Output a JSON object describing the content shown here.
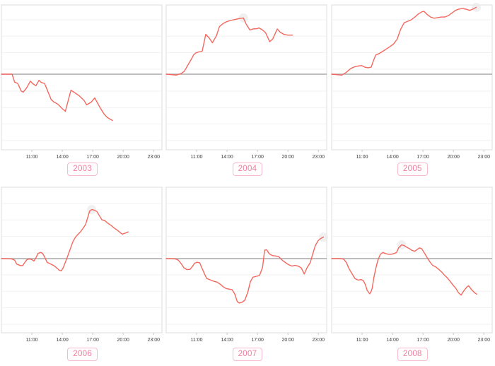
{
  "page": {
    "title": "",
    "background": "#ffffff"
  },
  "colors": {
    "line": "#f4675e",
    "zero_line": "#a8a8a8",
    "grid_line": "#f1f1f1",
    "panel_border": "#dcdcdc",
    "tick_text": "#3a3a3a",
    "tick_mark": "#c9c9c9",
    "year_text": "#ef7f9f",
    "year_border": "#f6bccb",
    "year_bg": "#fffcfd",
    "highlight_halo": "#e9e9e9"
  },
  "x_axis": {
    "tick_labels": [
      "11:00",
      "14:00",
      "17:00",
      "20:00",
      "23:00"
    ],
    "tick_hours": [
      11,
      14,
      17,
      20,
      23
    ],
    "range_hours": [
      8,
      23.75
    ]
  },
  "y_axis": {
    "range": [
      -4.85,
      4.6
    ],
    "tick_labels": []
  },
  "chart_data": [
    {
      "type": "line",
      "title": "2003",
      "xlabel": "",
      "ylabel": "",
      "grid": true,
      "zero_line": true,
      "legend": "none",
      "highlight": null,
      "points": [
        [
          8,
          0
        ],
        [
          9.05,
          0
        ],
        [
          9.3,
          -0.52
        ],
        [
          9.6,
          -0.6
        ],
        [
          9.95,
          -1.1
        ],
        [
          10.15,
          -1.17
        ],
        [
          10.5,
          -0.88
        ],
        [
          10.85,
          -0.45
        ],
        [
          11.1,
          -0.62
        ],
        [
          11.4,
          -0.75
        ],
        [
          11.7,
          -0.4
        ],
        [
          11.95,
          -0.55
        ],
        [
          12.25,
          -0.6
        ],
        [
          12.9,
          -1.65
        ],
        [
          13.15,
          -1.8
        ],
        [
          13.55,
          -1.95
        ],
        [
          14.05,
          -2.28
        ],
        [
          14.3,
          -2.42
        ],
        [
          14.85,
          -1.05
        ],
        [
          15.1,
          -1.15
        ],
        [
          15.65,
          -1.4
        ],
        [
          16.15,
          -1.72
        ],
        [
          16.4,
          -2.0
        ],
        [
          16.85,
          -1.82
        ],
        [
          17.2,
          -1.55
        ],
        [
          17.65,
          -2.1
        ],
        [
          18.1,
          -2.58
        ],
        [
          18.4,
          -2.8
        ],
        [
          18.75,
          -2.95
        ],
        [
          18.95,
          -3.02
        ]
      ]
    },
    {
      "type": "line",
      "title": "2004",
      "xlabel": "",
      "ylabel": "",
      "grid": true,
      "zero_line": true,
      "legend": "none",
      "highlight": [
        15.6,
        3.67
      ],
      "points": [
        [
          8,
          0
        ],
        [
          9,
          -0.06
        ],
        [
          9.5,
          0.05
        ],
        [
          9.8,
          0.2
        ],
        [
          10.1,
          0.55
        ],
        [
          10.45,
          0.95
        ],
        [
          10.7,
          1.25
        ],
        [
          10.9,
          1.38
        ],
        [
          11.2,
          1.45
        ],
        [
          11.55,
          1.5
        ],
        [
          11.9,
          2.6
        ],
        [
          12.25,
          2.35
        ],
        [
          12.55,
          2.05
        ],
        [
          12.95,
          2.5
        ],
        [
          13.25,
          3.1
        ],
        [
          13.6,
          3.3
        ],
        [
          13.95,
          3.42
        ],
        [
          14.3,
          3.5
        ],
        [
          14.75,
          3.56
        ],
        [
          15.2,
          3.63
        ],
        [
          15.6,
          3.67
        ],
        [
          15.9,
          3.25
        ],
        [
          16.25,
          2.88
        ],
        [
          16.55,
          2.95
        ],
        [
          16.95,
          2.97
        ],
        [
          17.15,
          3.02
        ],
        [
          17.5,
          2.88
        ],
        [
          17.8,
          2.7
        ],
        [
          18.2,
          2.12
        ],
        [
          18.5,
          2.3
        ],
        [
          18.95,
          2.95
        ],
        [
          19.25,
          2.73
        ],
        [
          19.6,
          2.6
        ],
        [
          19.95,
          2.55
        ],
        [
          20.45,
          2.55
        ]
      ]
    },
    {
      "type": "line",
      "title": "2005",
      "xlabel": "",
      "ylabel": "",
      "grid": true,
      "zero_line": true,
      "legend": "none",
      "highlight": [
        22.25,
        4.36
      ],
      "points": [
        [
          8,
          0
        ],
        [
          9,
          -0.06
        ],
        [
          9.4,
          0.1
        ],
        [
          9.9,
          0.38
        ],
        [
          10.25,
          0.48
        ],
        [
          10.6,
          0.53
        ],
        [
          10.95,
          0.56
        ],
        [
          11.3,
          0.45
        ],
        [
          11.6,
          0.42
        ],
        [
          11.9,
          0.46
        ],
        [
          12.1,
          0.85
        ],
        [
          12.35,
          1.25
        ],
        [
          12.7,
          1.35
        ],
        [
          13.05,
          1.5
        ],
        [
          13.4,
          1.65
        ],
        [
          13.75,
          1.8
        ],
        [
          14.1,
          1.97
        ],
        [
          14.45,
          2.28
        ],
        [
          14.8,
          2.93
        ],
        [
          15.15,
          3.36
        ],
        [
          15.5,
          3.45
        ],
        [
          15.85,
          3.55
        ],
        [
          16.2,
          3.73
        ],
        [
          16.55,
          3.93
        ],
        [
          16.9,
          4.07
        ],
        [
          17.1,
          4.1
        ],
        [
          17.4,
          3.9
        ],
        [
          17.75,
          3.73
        ],
        [
          18.1,
          3.65
        ],
        [
          18.45,
          3.69
        ],
        [
          18.8,
          3.73
        ],
        [
          19.15,
          3.73
        ],
        [
          19.5,
          3.82
        ],
        [
          19.85,
          3.98
        ],
        [
          20.2,
          4.16
        ],
        [
          20.55,
          4.25
        ],
        [
          20.9,
          4.28
        ],
        [
          21.25,
          4.24
        ],
        [
          21.6,
          4.16
        ],
        [
          21.9,
          4.24
        ],
        [
          22.25,
          4.36
        ]
      ]
    },
    {
      "type": "line",
      "title": "2006",
      "xlabel": "",
      "ylabel": "",
      "grid": true,
      "zero_line": true,
      "legend": "none",
      "highlight": [
        16.9,
        3.2
      ],
      "points": [
        [
          8,
          0
        ],
        [
          9,
          -0.02
        ],
        [
          9.3,
          -0.1
        ],
        [
          9.5,
          -0.35
        ],
        [
          9.85,
          -0.45
        ],
        [
          10.1,
          -0.45
        ],
        [
          10.3,
          -0.26
        ],
        [
          10.5,
          -0.08
        ],
        [
          10.75,
          -0.02
        ],
        [
          11,
          -0.06
        ],
        [
          11.2,
          -0.16
        ],
        [
          11.4,
          0.05
        ],
        [
          11.6,
          0.33
        ],
        [
          11.85,
          0.4
        ],
        [
          12.05,
          0.35
        ],
        [
          12.3,
          0.05
        ],
        [
          12.5,
          -0.24
        ],
        [
          12.85,
          -0.35
        ],
        [
          13.15,
          -0.45
        ],
        [
          13.4,
          -0.58
        ],
        [
          13.7,
          -0.76
        ],
        [
          13.9,
          -0.8
        ],
        [
          14.1,
          -0.58
        ],
        [
          14.45,
          0.02
        ],
        [
          14.8,
          0.66
        ],
        [
          15.05,
          1.12
        ],
        [
          15.3,
          1.4
        ],
        [
          15.5,
          1.55
        ],
        [
          15.8,
          1.75
        ],
        [
          16.05,
          1.98
        ],
        [
          16.3,
          2.23
        ],
        [
          16.5,
          2.67
        ],
        [
          16.7,
          3.1
        ],
        [
          16.9,
          3.2
        ],
        [
          17.1,
          3.17
        ],
        [
          17.4,
          3.08
        ],
        [
          17.65,
          2.8
        ],
        [
          17.9,
          2.53
        ],
        [
          18.2,
          2.47
        ],
        [
          18.5,
          2.3
        ],
        [
          18.8,
          2.17
        ],
        [
          19.1,
          2.0
        ],
        [
          19.4,
          1.86
        ],
        [
          19.7,
          1.7
        ],
        [
          19.9,
          1.6
        ],
        [
          20.2,
          1.66
        ],
        [
          20.5,
          1.74
        ]
      ]
    },
    {
      "type": "line",
      "title": "2007",
      "xlabel": "",
      "ylabel": "",
      "grid": true,
      "zero_line": true,
      "legend": "none",
      "highlight": [
        23.5,
        1.4
      ],
      "points": [
        [
          8,
          0
        ],
        [
          8.9,
          -0.02
        ],
        [
          9.2,
          -0.1
        ],
        [
          9.5,
          -0.35
        ],
        [
          9.75,
          -0.6
        ],
        [
          10.05,
          -0.72
        ],
        [
          10.35,
          -0.7
        ],
        [
          10.6,
          -0.5
        ],
        [
          10.8,
          -0.3
        ],
        [
          11.05,
          -0.24
        ],
        [
          11.3,
          -0.27
        ],
        [
          11.55,
          -0.65
        ],
        [
          11.8,
          -1.03
        ],
        [
          12,
          -1.3
        ],
        [
          12.3,
          -1.38
        ],
        [
          12.65,
          -1.47
        ],
        [
          13,
          -1.53
        ],
        [
          13.35,
          -1.68
        ],
        [
          13.6,
          -1.83
        ],
        [
          13.9,
          -1.95
        ],
        [
          14.2,
          -1.99
        ],
        [
          14.5,
          -2.03
        ],
        [
          14.75,
          -2.3
        ],
        [
          15,
          -2.8
        ],
        [
          15.2,
          -2.9
        ],
        [
          15.5,
          -2.84
        ],
        [
          15.75,
          -2.72
        ],
        [
          16.05,
          -2.18
        ],
        [
          16.3,
          -1.5
        ],
        [
          16.55,
          -1.21
        ],
        [
          16.9,
          -1.15
        ],
        [
          17.2,
          -1.1
        ],
        [
          17.5,
          -0.57
        ],
        [
          17.7,
          0.55
        ],
        [
          17.9,
          0.58
        ],
        [
          18.15,
          0.32
        ],
        [
          18.45,
          0.2
        ],
        [
          18.8,
          0.17
        ],
        [
          19.1,
          0.12
        ],
        [
          19.45,
          -0.11
        ],
        [
          19.75,
          -0.26
        ],
        [
          20.05,
          -0.39
        ],
        [
          20.4,
          -0.49
        ],
        [
          20.7,
          -0.44
        ],
        [
          21,
          -0.49
        ],
        [
          21.3,
          -0.6
        ],
        [
          21.6,
          -1.0
        ],
        [
          21.9,
          -0.57
        ],
        [
          22.2,
          -0.26
        ],
        [
          22.4,
          0.2
        ],
        [
          22.7,
          0.85
        ],
        [
          23,
          1.2
        ],
        [
          23.25,
          1.32
        ],
        [
          23.5,
          1.4
        ]
      ]
    },
    {
      "type": "line",
      "title": "2008",
      "xlabel": "",
      "ylabel": "",
      "grid": true,
      "zero_line": true,
      "legend": "none",
      "highlight": [
        14.9,
        0.9
      ],
      "points": [
        [
          8,
          0
        ],
        [
          8.9,
          0
        ],
        [
          9.2,
          -0.04
        ],
        [
          9.45,
          -0.26
        ],
        [
          9.75,
          -0.7
        ],
        [
          10.05,
          -1.03
        ],
        [
          10.3,
          -1.3
        ],
        [
          10.6,
          -1.4
        ],
        [
          10.9,
          -1.37
        ],
        [
          11.1,
          -1.42
        ],
        [
          11.3,
          -1.67
        ],
        [
          11.5,
          -2.07
        ],
        [
          11.75,
          -2.3
        ],
        [
          11.9,
          -2.12
        ],
        [
          12,
          -1.92
        ],
        [
          12.15,
          -1.26
        ],
        [
          12.35,
          -0.65
        ],
        [
          12.55,
          -0.11
        ],
        [
          12.8,
          0.28
        ],
        [
          13.05,
          0.4
        ],
        [
          13.35,
          0.32
        ],
        [
          13.6,
          0.28
        ],
        [
          13.85,
          0.28
        ],
        [
          14.1,
          0.32
        ],
        [
          14.4,
          0.4
        ],
        [
          14.6,
          0.7
        ],
        [
          14.9,
          0.9
        ],
        [
          15.15,
          0.85
        ],
        [
          15.4,
          0.74
        ],
        [
          15.65,
          0.66
        ],
        [
          15.9,
          0.54
        ],
        [
          16.2,
          0.48
        ],
        [
          16.4,
          0.58
        ],
        [
          16.65,
          0.7
        ],
        [
          16.9,
          0.63
        ],
        [
          17.1,
          0.4
        ],
        [
          17.4,
          0.08
        ],
        [
          17.7,
          -0.23
        ],
        [
          17.95,
          -0.44
        ],
        [
          18.25,
          -0.54
        ],
        [
          18.55,
          -0.7
        ],
        [
          18.85,
          -0.88
        ],
        [
          19.1,
          -1.07
        ],
        [
          19.4,
          -1.26
        ],
        [
          19.7,
          -1.5
        ],
        [
          19.95,
          -1.72
        ],
        [
          20.25,
          -1.95
        ],
        [
          20.5,
          -2.23
        ],
        [
          20.75,
          -2.38
        ],
        [
          21,
          -2.13
        ],
        [
          21.3,
          -1.87
        ],
        [
          21.5,
          -1.77
        ],
        [
          21.8,
          -2.03
        ],
        [
          22.1,
          -2.23
        ],
        [
          22.3,
          -2.32
        ]
      ]
    }
  ]
}
